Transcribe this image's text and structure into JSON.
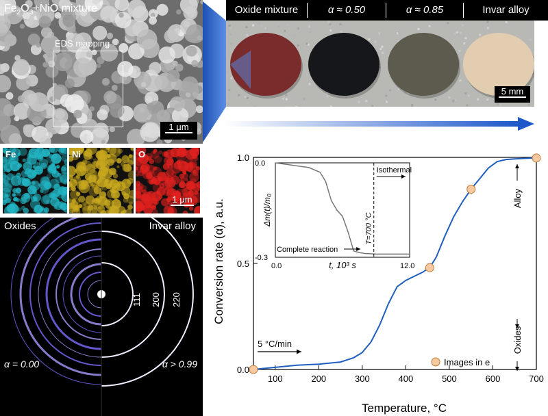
{
  "sem": {
    "title_main": "Fe",
    "title_sub1": "2",
    "title_mid": "O",
    "title_sub2": "3",
    "title_end": "+NiO mixture",
    "eds_label": "EDS mapping",
    "scale": "1 μm"
  },
  "eds_maps": [
    {
      "label": "Fe",
      "color": "#22b5c4"
    },
    {
      "label": "Ni",
      "color": "#c8a81e"
    },
    {
      "label": "O",
      "color": "#e0211e"
    }
  ],
  "eds_scale": "1 μm",
  "diffraction": {
    "left_label": "Oxides",
    "right_label": "Invar alloy",
    "left_alpha": "α = 0.00",
    "right_alpha": "α > 0.99",
    "ring_labels": [
      "111",
      "200",
      "220"
    ]
  },
  "photos": {
    "headers": [
      "Oxide mixture",
      "α ≈ 0.50",
      "α ≈ 0.85",
      "Invar alloy"
    ],
    "scale": "5 mm",
    "sample_colors": [
      "#7a2c2c",
      "#16171a",
      "#5d5a4e",
      "#e3cdb0"
    ]
  },
  "chart_data": {
    "type": "line",
    "xlabel": "Temperature, °C",
    "ylabel": "Conversion rate (α), a.u.",
    "xlim": [
      50,
      700
    ],
    "ylim": [
      0,
      1
    ],
    "xticks": [
      100,
      200,
      300,
      400,
      500,
      600,
      700
    ],
    "xtick_labels": [
      "100",
      "200",
      "300",
      "400",
      "500",
      "600",
      "700"
    ],
    "yticks": [
      0,
      0.5,
      1
    ],
    "ytick_labels": [
      "0.0",
      "0.5",
      "1.0"
    ],
    "line_color": "#1f5fbf",
    "series": [
      {
        "x": [
          50,
          100,
          150,
          200,
          250,
          280,
          300,
          320,
          340,
          360,
          380,
          400,
          420,
          440,
          455,
          470,
          490,
          510,
          530,
          550,
          570,
          590,
          610,
          630,
          650,
          680,
          700
        ],
        "y": [
          0.0,
          0.01,
          0.02,
          0.025,
          0.035,
          0.055,
          0.08,
          0.13,
          0.21,
          0.31,
          0.39,
          0.42,
          0.44,
          0.46,
          0.48,
          0.53,
          0.63,
          0.72,
          0.79,
          0.85,
          0.9,
          0.95,
          0.98,
          0.99,
          0.993,
          0.996,
          0.997
        ]
      }
    ],
    "markers": {
      "x": [
        50,
        455,
        550,
        700
      ],
      "y": [
        0.0,
        0.48,
        0.85,
        0.997
      ],
      "color": "#f6c9a0"
    },
    "legend": "Images in e",
    "rate_label": "5 °C/min",
    "right_top_label": "Alloy",
    "right_bottom_label": "Oxides",
    "inset": {
      "type": "line",
      "xlabel": "t, 10³ s",
      "ylabel": "Δm(t)/m₀",
      "xlim": [
        0,
        12
      ],
      "ylim": [
        -0.3,
        0
      ],
      "xtick_labels": [
        "0.0",
        "12.0"
      ],
      "ytick_labels": [
        "0.0",
        "-0.3"
      ],
      "x": [
        0,
        1,
        2,
        3,
        4,
        4.5,
        5,
        5.5,
        6,
        6.5,
        7,
        7.5,
        8,
        8.5,
        9,
        10,
        11,
        12
      ],
      "y": [
        0,
        -0.005,
        -0.01,
        -0.015,
        -0.03,
        -0.06,
        -0.12,
        -0.15,
        -0.17,
        -0.22,
        -0.28,
        -0.285,
        -0.288,
        -0.289,
        -0.29,
        -0.29,
        -0.29,
        -0.29
      ],
      "iso_x": 8.8,
      "iso_label": "Isothermal",
      "temp_label": "T=700 °C",
      "complete_label": "Complete reaction"
    }
  }
}
